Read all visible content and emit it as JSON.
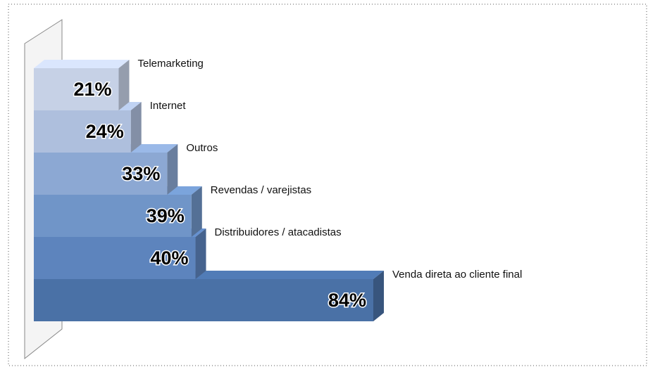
{
  "chart_data": {
    "type": "bar3d",
    "categories": [
      "Telemarketing",
      "Internet",
      "Outros",
      "Revendas / varejistas",
      "Distribuidores / atacadistas",
      "Venda direta ao cliente final"
    ],
    "values": [
      21,
      24,
      33,
      39,
      40,
      84
    ],
    "value_labels": [
      "21%",
      "24%",
      "33%",
      "39%",
      "40%",
      "84%"
    ],
    "colors": [
      "#c6d1e6",
      "#aebfdd",
      "#8ca8d3",
      "#7095c8",
      "#5d84bd",
      "#4a71a6"
    ]
  }
}
